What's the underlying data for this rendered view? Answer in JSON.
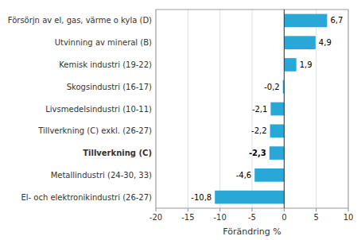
{
  "chart_data": {
    "type": "bar",
    "orientation": "horizontal",
    "categories": [
      "El- och elektronikindustri (26-27)",
      "Metallindustri (24-30, 33)",
      "Tillverkning (C)",
      "Tillverkning (C) exkl. (26-27)",
      "Livsmedelsindustri (10-11)",
      "Skogsindustri (16-17)",
      "Kemisk industri (19-22)",
      "Utvinning av mineral (B)",
      "Försörjn av el, gas, värme o kyla (D)"
    ],
    "values": [
      -10.8,
      -4.6,
      -2.3,
      -2.2,
      -2.1,
      -0.2,
      1.9,
      4.9,
      6.7
    ],
    "value_labels": [
      "-10,8",
      "-4,6",
      "-2,3",
      "-2,2",
      "-2,1",
      "-0,2",
      "1,9",
      "4,9",
      "6,7"
    ],
    "data_labels": true,
    "color": "#29a8d8",
    "xlabel": "Förändring %",
    "xlim": [
      -20,
      10
    ],
    "xticks": [
      -20,
      -15,
      -10,
      -5,
      0,
      5,
      10
    ],
    "grid": true
  }
}
